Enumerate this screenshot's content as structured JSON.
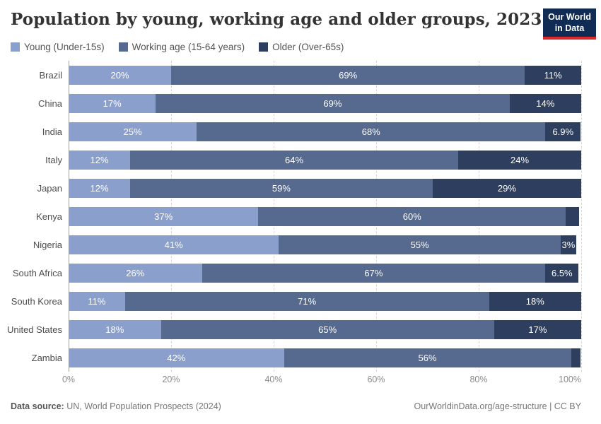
{
  "header": {
    "title": "Population by young, working age and older groups, 2023",
    "logo": {
      "line1": "Our World",
      "line2": "in Data",
      "bg_color": "#102b54",
      "accent_color": "#dc2a2a"
    }
  },
  "legend": [
    {
      "label": "Young (Under-15s)",
      "color": "#8a9fcc"
    },
    {
      "label": "Working age (15-64 years)",
      "color": "#56698f"
    },
    {
      "label": "Older (Over-65s)",
      "color": "#2d3e5e"
    }
  ],
  "chart_data": {
    "type": "bar",
    "stacked": true,
    "orientation": "horizontal",
    "title": "Population by young, working age and older groups, 2023",
    "unit": "%",
    "xlim": [
      0,
      100
    ],
    "x_ticks": [
      "0%",
      "20%",
      "40%",
      "60%",
      "80%",
      "100%"
    ],
    "grid": "vertical-dashed",
    "legend_position": "top",
    "series": [
      {
        "key": "young",
        "name": "Young (Under-15s)",
        "color": "#8a9fcc"
      },
      {
        "key": "working-age",
        "name": "Working age (15-64 years)",
        "color": "#56698f"
      },
      {
        "key": "older",
        "name": "Older (Over-65s)",
        "color": "#2d3e5e"
      }
    ],
    "rows": [
      {
        "country": "Brazil",
        "values": [
          20,
          69,
          11
        ],
        "labels": [
          "20%",
          "69%",
          "11%"
        ]
      },
      {
        "country": "China",
        "values": [
          17,
          69,
          14
        ],
        "labels": [
          "17%",
          "69%",
          "14%"
        ]
      },
      {
        "country": "India",
        "values": [
          25,
          68,
          6.9
        ],
        "labels": [
          "25%",
          "68%",
          "6.9%"
        ]
      },
      {
        "country": "Italy",
        "values": [
          12,
          64,
          24
        ],
        "labels": [
          "12%",
          "64%",
          "24%"
        ]
      },
      {
        "country": "Japan",
        "values": [
          12,
          59,
          29
        ],
        "labels": [
          "12%",
          "59%",
          "29%"
        ]
      },
      {
        "country": "Kenya",
        "values": [
          37,
          60,
          2.6
        ],
        "labels": [
          "37%",
          "60%",
          ""
        ]
      },
      {
        "country": "Nigeria",
        "values": [
          41,
          55,
          3
        ],
        "labels": [
          "41%",
          "55%",
          "3%"
        ]
      },
      {
        "country": "South Africa",
        "values": [
          26,
          67,
          6.5
        ],
        "labels": [
          "26%",
          "67%",
          "6.5%"
        ]
      },
      {
        "country": "South Korea",
        "values": [
          11,
          71,
          18
        ],
        "labels": [
          "11%",
          "71%",
          "18%"
        ]
      },
      {
        "country": "United States",
        "values": [
          18,
          65,
          17
        ],
        "labels": [
          "18%",
          "65%",
          "17%"
        ]
      },
      {
        "country": "Zambia",
        "values": [
          42,
          56,
          1.8
        ],
        "labels": [
          "42%",
          "56%",
          ""
        ]
      }
    ]
  },
  "footer": {
    "source_bold": "Data source:",
    "source_rest": " UN, World Population Prospects (2024)",
    "credit": "OurWorldinData.org/age-structure | CC BY"
  }
}
